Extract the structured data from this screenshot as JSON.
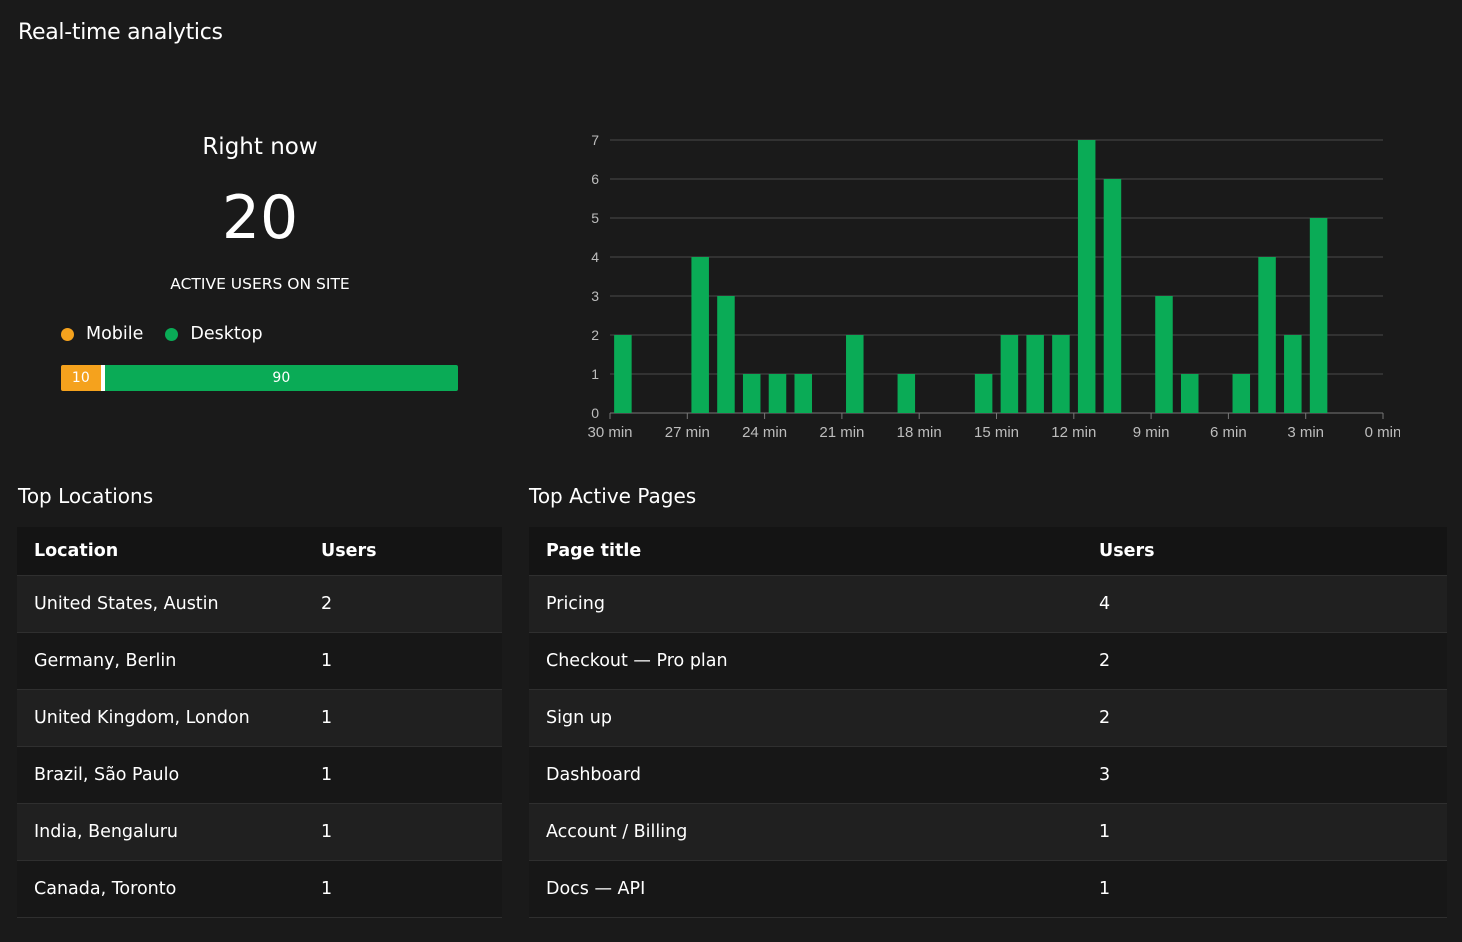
{
  "header": {
    "title": "Real-time analytics"
  },
  "right_now": {
    "label": "Right now",
    "count": "20",
    "caption": "ACTIVE USERS ON SITE",
    "legend": [
      {
        "label": "Mobile",
        "color": "#f5a21d"
      },
      {
        "label": "Desktop",
        "color": "#0aab56"
      }
    ],
    "split": {
      "mobile": "10",
      "desktop": "90"
    }
  },
  "chart_data": {
    "type": "bar",
    "x": [
      30,
      29,
      28,
      27,
      26,
      25,
      24,
      23,
      22,
      21,
      20,
      19,
      18,
      17,
      16,
      15,
      14,
      13,
      12,
      11,
      10,
      9,
      8,
      7,
      6,
      5,
      4,
      3,
      2,
      1,
      0
    ],
    "values": [
      0,
      2,
      0,
      0,
      4,
      3,
      1,
      1,
      1,
      0,
      2,
      0,
      1,
      0,
      0,
      1,
      2,
      2,
      2,
      7,
      6,
      0,
      3,
      1,
      0,
      1,
      4,
      2,
      5,
      0,
      0
    ],
    "x_tick_labels": [
      "30 min",
      "27 min",
      "24 min",
      "21 min",
      "18 min",
      "15 min",
      "12 min",
      "9 min",
      "6 min",
      "3 min",
      "0 min"
    ],
    "y_tick_labels": [
      "0",
      "1",
      "2",
      "3",
      "4",
      "5",
      "6",
      "7"
    ],
    "ylim": [
      0,
      7
    ],
    "grid": true,
    "color": "#0aab56"
  },
  "locations": {
    "title": "Top Locations",
    "columns": [
      "Location",
      "Users"
    ],
    "rows": [
      [
        "United States, Austin",
        "2"
      ],
      [
        "Germany, Berlin",
        "1"
      ],
      [
        "United Kingdom, London",
        "1"
      ],
      [
        "Brazil, São Paulo",
        "1"
      ],
      [
        "India, Bengaluru",
        "1"
      ],
      [
        "Canada, Toronto",
        "1"
      ]
    ]
  },
  "pages": {
    "title": "Top Active Pages",
    "columns": [
      "Page title",
      "Users"
    ],
    "rows": [
      [
        "Pricing",
        "4"
      ],
      [
        "Checkout — Pro plan",
        "2"
      ],
      [
        "Sign up",
        "2"
      ],
      [
        "Dashboard",
        "3"
      ],
      [
        "Account / Billing",
        "1"
      ],
      [
        "Docs — API",
        "1"
      ]
    ]
  }
}
